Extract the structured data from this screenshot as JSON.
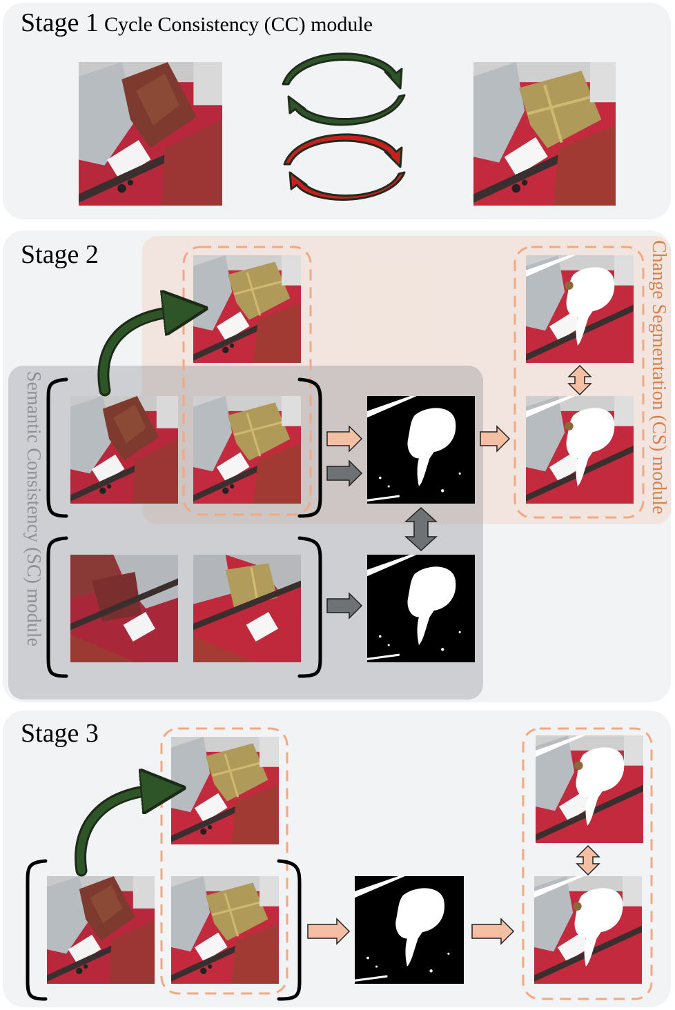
{
  "stage1": {
    "title": "Stage 1",
    "module": "Cycle Consistency (CC) module"
  },
  "stage2": {
    "title": "Stage 2",
    "sc_module": "Semantic Consistency (SC) module",
    "cs_module": "Change Segmentation (CS) module"
  },
  "stage3": {
    "title": "Stage 3"
  },
  "colors": {
    "panel_bg": "#f2f3f5",
    "cs_region": "#f5d9c8",
    "sc_region": "#cfd1d5",
    "cs_dashed_border": "#f2a880",
    "green_arrow": "#2e5527",
    "red_arrow": "#c8201e",
    "peach_arrow": "#f4bfa3",
    "gray_arrow": "#6e7274"
  },
  "icons": {
    "image_t1": "satellite-image-before",
    "image_t2": "satellite-image-after",
    "mask": "binary-change-mask",
    "cycle": "cycle-arrows-icon"
  }
}
